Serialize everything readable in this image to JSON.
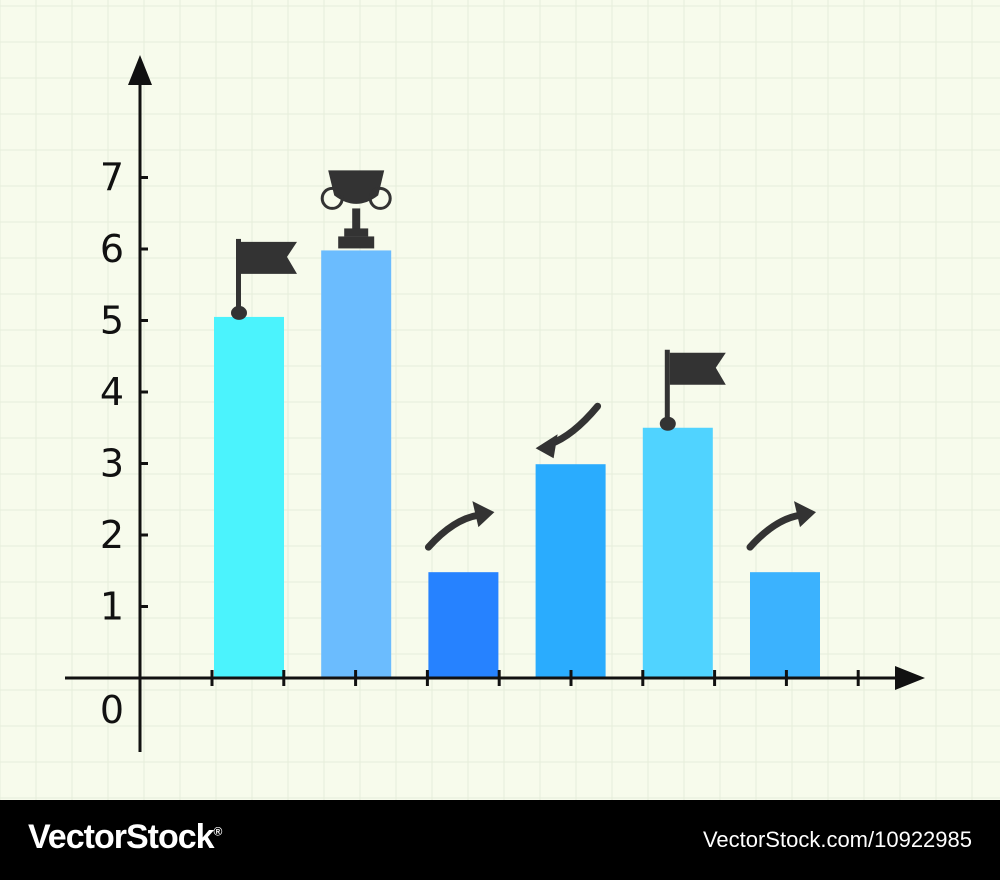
{
  "chart_data": {
    "type": "bar",
    "categories": [
      "",
      "",
      "",
      "",
      "",
      ""
    ],
    "values": [
      5.05,
      5.98,
      1.48,
      2.99,
      3.5,
      1.48
    ],
    "bar_colors": [
      "#4bf3fd",
      "#6bbcfe",
      "#2682ff",
      "#2aacfe",
      "#50d3ff",
      "#3bb2fe"
    ],
    "bar_markers": [
      "flag-icon",
      "trophy-icon",
      "arrow-up-icon",
      "arrow-down-icon",
      "flag-icon",
      "arrow-up-icon"
    ],
    "y_ticks": [
      1,
      2,
      3,
      4,
      5,
      6,
      7
    ],
    "y_tick_labels": [
      "1",
      "2",
      "3",
      "4",
      "5",
      "6",
      "7"
    ],
    "origin_label": "0",
    "ylim": [
      0,
      8
    ],
    "title": "",
    "xlabel": "",
    "ylabel": "",
    "grid": true,
    "colors": {
      "background": "#f7fbec",
      "axis": "#111111",
      "marker": "#333333",
      "grid": "#e6eedb"
    }
  },
  "footer": {
    "brand": "VectorStock",
    "brand_mark": "®",
    "stock_id": "VectorStock.com/10922985"
  }
}
